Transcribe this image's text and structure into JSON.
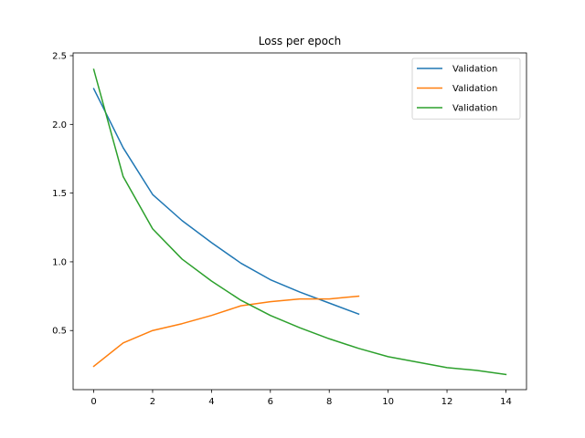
{
  "chart_data": {
    "type": "line",
    "title": "Loss per epoch",
    "xlabel": "",
    "ylabel": "",
    "xlim": [
      -0.7,
      14.7
    ],
    "ylim": [
      0.07,
      2.52
    ],
    "xticks": [
      0,
      2,
      4,
      6,
      8,
      10,
      12,
      14
    ],
    "xtick_labels": [
      "0",
      "2",
      "4",
      "6",
      "8",
      "10",
      "12",
      "14"
    ],
    "yticks": [
      0.5,
      1.0,
      1.5,
      2.0,
      2.5
    ],
    "ytick_labels": [
      "0.5",
      "1.0",
      "1.5",
      "2.0",
      "2.5"
    ],
    "grid": false,
    "legend_position": "top-right",
    "series": [
      {
        "name": "Validation",
        "color": "#1f77b4",
        "x": [
          0,
          1,
          2,
          3,
          4,
          5,
          6,
          7,
          8,
          9
        ],
        "values": [
          2.26,
          1.83,
          1.49,
          1.3,
          1.14,
          0.99,
          0.87,
          0.78,
          0.7,
          0.62
        ]
      },
      {
        "name": "Validation",
        "color": "#ff7f0e",
        "x": [
          0,
          1,
          2,
          3,
          4,
          5,
          6,
          7,
          8,
          9
        ],
        "values": [
          0.24,
          0.41,
          0.5,
          0.55,
          0.61,
          0.68,
          0.71,
          0.73,
          0.73,
          0.75
        ]
      },
      {
        "name": "Validation",
        "color": "#2ca02c",
        "x": [
          0,
          1,
          2,
          3,
          4,
          5,
          6,
          7,
          8,
          9,
          10,
          11,
          12,
          13,
          14
        ],
        "values": [
          2.4,
          1.62,
          1.24,
          1.02,
          0.86,
          0.72,
          0.61,
          0.52,
          0.44,
          0.37,
          0.31,
          0.27,
          0.23,
          0.21,
          0.18
        ]
      }
    ]
  }
}
